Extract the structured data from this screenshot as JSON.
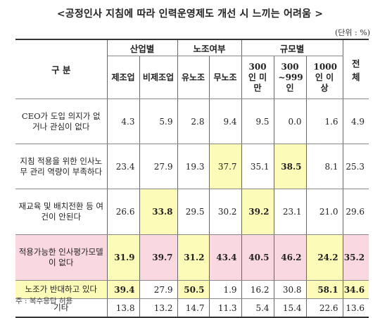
{
  "title": "<공정인사 지침에 따라 인력운영제도 개선 시 느끼는 어려움 >",
  "unit": "(단위 : %)",
  "table": {
    "corner_label": "구    분",
    "groups": [
      "산업별",
      "노조여부",
      "규모별",
      "전체"
    ],
    "columns": [
      "제조업",
      "비제조업",
      "유노조",
      "무노조",
      "300인 미만",
      "300 ~999인",
      "1000인 이상"
    ],
    "rows": [
      {
        "label": "CEO가 도입 의지가 없거나 관심이 없다",
        "values": [
          "4.3",
          "5.9",
          "2.8",
          "9.4",
          "9.5",
          "0.0",
          "1.6",
          "4.9"
        ]
      },
      {
        "label": "지침 적용을 위한 인사노무 관리 역량이 부족하다",
        "values": [
          "23.4",
          "27.9",
          "19.3",
          "37.7",
          "35.1",
          "38.5",
          "8.1",
          "25.3"
        ]
      },
      {
        "label": "재교육 및 배치전환 등 여건이 안된다",
        "values": [
          "26.6",
          "33.8",
          "29.5",
          "30.2",
          "39.2",
          "23.1",
          "21.0",
          "29.6"
        ]
      },
      {
        "label": "적용가능한 인사평가모델이 없다",
        "values": [
          "31.9",
          "39.7",
          "31.2",
          "43.4",
          "40.5",
          "46.2",
          "24.2",
          "35.2"
        ]
      },
      {
        "label": "노조가 반대하고 있다",
        "values": [
          "39.4",
          "27.9",
          "50.5",
          "1.9",
          "16.2",
          "30.8",
          "58.1",
          "34.6"
        ]
      },
      {
        "label": "기타",
        "values": [
          "13.8",
          "13.2",
          "14.7",
          "11.3",
          "5.4",
          "15.4",
          "22.6",
          "13.6"
        ]
      }
    ]
  },
  "note": "주 : 복수응답 허용",
  "colors": {
    "highlight_yellow": "#fdfbb8",
    "highlight_pink": "#fad8e1"
  }
}
